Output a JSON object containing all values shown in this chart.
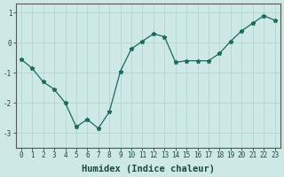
{
  "x": [
    0,
    1,
    2,
    3,
    4,
    5,
    6,
    7,
    8,
    9,
    10,
    11,
    12,
    13,
    14,
    15,
    16,
    17,
    18,
    19,
    20,
    21,
    22,
    23
  ],
  "y": [
    -0.55,
    -0.85,
    -1.3,
    -1.55,
    -2.0,
    -2.8,
    -2.55,
    -2.85,
    -2.3,
    -0.95,
    -0.2,
    0.05,
    0.3,
    0.2,
    -0.65,
    -0.6,
    -0.6,
    -0.6,
    -0.35,
    0.05,
    0.4,
    0.65,
    0.9,
    0.75
  ],
  "line_color": "#1a6b5e",
  "marker": "*",
  "marker_size": 3.5,
  "bg_color": "#cde8e5",
  "grid_color": "#b8d8d5",
  "xlabel": "Humidex (Indice chaleur)",
  "ylim": [
    -3.5,
    1.3
  ],
  "xlim": [
    -0.5,
    23.5
  ],
  "yticks": [
    -3,
    -2,
    -1,
    0,
    1
  ],
  "xticks": [
    0,
    1,
    2,
    3,
    4,
    5,
    6,
    7,
    8,
    9,
    10,
    11,
    12,
    13,
    14,
    15,
    16,
    17,
    18,
    19,
    20,
    21,
    22,
    23
  ],
  "tick_fontsize": 5.5,
  "xlabel_fontsize": 7.5,
  "spine_color": "#555555"
}
